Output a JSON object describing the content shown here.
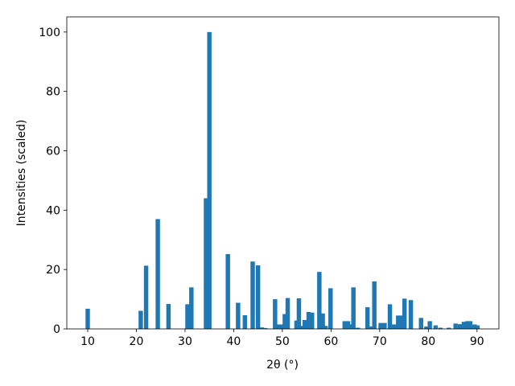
{
  "chart_data": {
    "type": "bar",
    "xlabel": "2θ (°)",
    "ylabel": "Intensities (scaled)",
    "color": "#1f77b4",
    "x": [
      10.0,
      20.9,
      22.0,
      24.4,
      26.6,
      30.5,
      31.3,
      34.3,
      35.0,
      38.8,
      40.9,
      42.3,
      43.9,
      45.0,
      45.8,
      46.5,
      48.5,
      49.3,
      50.1,
      50.5,
      51.1,
      52.9,
      53.4,
      54.1,
      54.6,
      55.4,
      56.1,
      57.6,
      58.3,
      58.9,
      59.9,
      62.8,
      63.5,
      64.1,
      64.6,
      65.5,
      67.5,
      68.4,
      68.9,
      70.2,
      71.0,
      72.1,
      72.5,
      73.3,
      73.8,
      74.5,
      75.1,
      76.4,
      78.5,
      79.6,
      80.3,
      81.5,
      82.5,
      84.2,
      85.6,
      86.5,
      87.3,
      88.0,
      88.6,
      89.5,
      90.1
    ],
    "values": [
      6.8,
      6.1,
      21.3,
      37,
      8.4,
      8.3,
      14,
      44,
      100,
      25.2,
      8.8,
      4.6,
      22.7,
      21.4,
      0.5,
      0.3,
      10,
      1.5,
      1.5,
      5,
      10.4,
      2.8,
      10.3,
      1.0,
      3,
      5.7,
      5.5,
      19.2,
      5.2,
      1,
      13.7,
      2.6,
      2.6,
      1.5,
      14,
      0.4,
      7.3,
      0.8,
      16,
      2,
      2,
      8.3,
      1.5,
      1.5,
      4.5,
      4.5,
      10.2,
      9.7,
      3.7,
      0.8,
      2.6,
      1.2,
      0.4,
      0.4,
      1.8,
      1.6,
      2.4,
      2.6,
      2.6,
      1.5,
      1.2
    ],
    "xlim": [
      5.7,
      94.5
    ],
    "ylim": [
      0,
      105.1
    ],
    "xticks": [
      10,
      20,
      30,
      40,
      50,
      60,
      70,
      80,
      90
    ],
    "yticks": [
      0,
      20,
      40,
      60,
      80,
      100
    ]
  }
}
